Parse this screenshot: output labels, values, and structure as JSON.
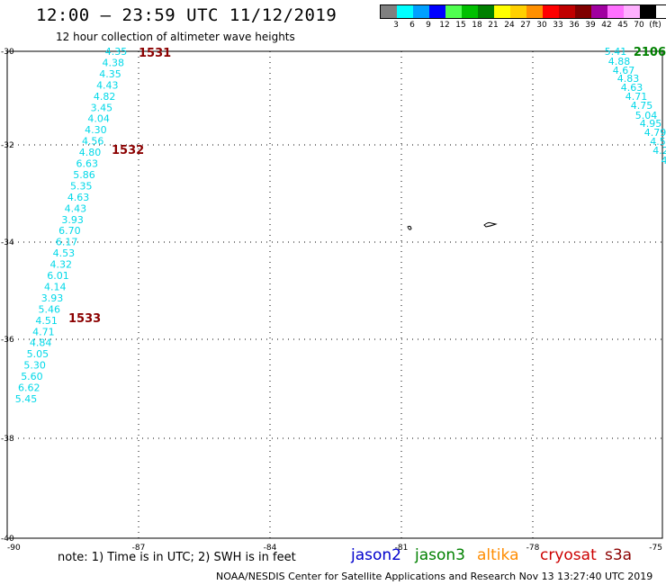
{
  "title": "12:00 – 23:59 UTC 11/12/2019",
  "subtitle": "12 hour collection of altimeter wave heights",
  "colorbar": {
    "colors": [
      "#808080",
      "#00ffff",
      "#00a0ff",
      "#0000ff",
      "#50ff50",
      "#00c000",
      "#008000",
      "#ffff00",
      "#ffd000",
      "#ff9000",
      "#ff0000",
      "#c00000",
      "#800000",
      "#a000a0",
      "#ff70ff",
      "#ffb0ff",
      "#000000"
    ],
    "labels": [
      "3",
      "6",
      "9",
      "12",
      "15",
      "18",
      "21",
      "24",
      "27",
      "30",
      "33",
      "36",
      "39",
      "42",
      "45",
      "70",
      "(ft)"
    ]
  },
  "axes": {
    "y_labels": [
      "-30",
      "-32",
      "-34",
      "-36",
      "-38",
      "-40"
    ],
    "x_labels": [
      "-90",
      "-87",
      "-84",
      "-81",
      "-78",
      "-75"
    ]
  },
  "passes": [
    {
      "id": "1531",
      "color": "#8b0000"
    },
    {
      "id": "1532",
      "color": "#8b0000"
    },
    {
      "id": "1533",
      "color": "#8b0000"
    },
    {
      "id": "2106",
      "color": "#008000"
    }
  ],
  "track_left": [
    "4.35",
    "4.38",
    "4.35",
    "4.43",
    "4.82",
    "3.45",
    "4.04",
    "4.30",
    "4.56",
    "4.80",
    "6.63",
    "5.86",
    "5.35",
    "4.63",
    "4.43",
    "3.93",
    "6.70",
    "6.17",
    "4.53",
    "4.32",
    "6.01",
    "4.14",
    "3.93",
    "5.46",
    "4.51",
    "4.71",
    "4.84",
    "5.05",
    "5.30",
    "5.60",
    "6.62",
    "5.45"
  ],
  "track_right": [
    "5.41",
    "4.88",
    "4.67",
    "4.83",
    "4.63",
    "4.71",
    "4.75",
    "5.04",
    "4.95",
    "4.79",
    "4.5",
    "4.2",
    "4"
  ],
  "note": "note: 1) Time is in UTC; 2) SWH is in feet",
  "satellites": [
    {
      "name": "jason2",
      "color": "#0000cc"
    },
    {
      "name": "jason3",
      "color": "#008000"
    },
    {
      "name": "altika",
      "color": "#ff8c00"
    },
    {
      "name": "cryosat",
      "color": "#cc0000"
    },
    {
      "name": "s3a",
      "color": "#8b0000"
    }
  ],
  "footer": "NOAA/NESDIS Center for Satellite Applications and Research    Nov 13 13:27:40 UTC 2019"
}
